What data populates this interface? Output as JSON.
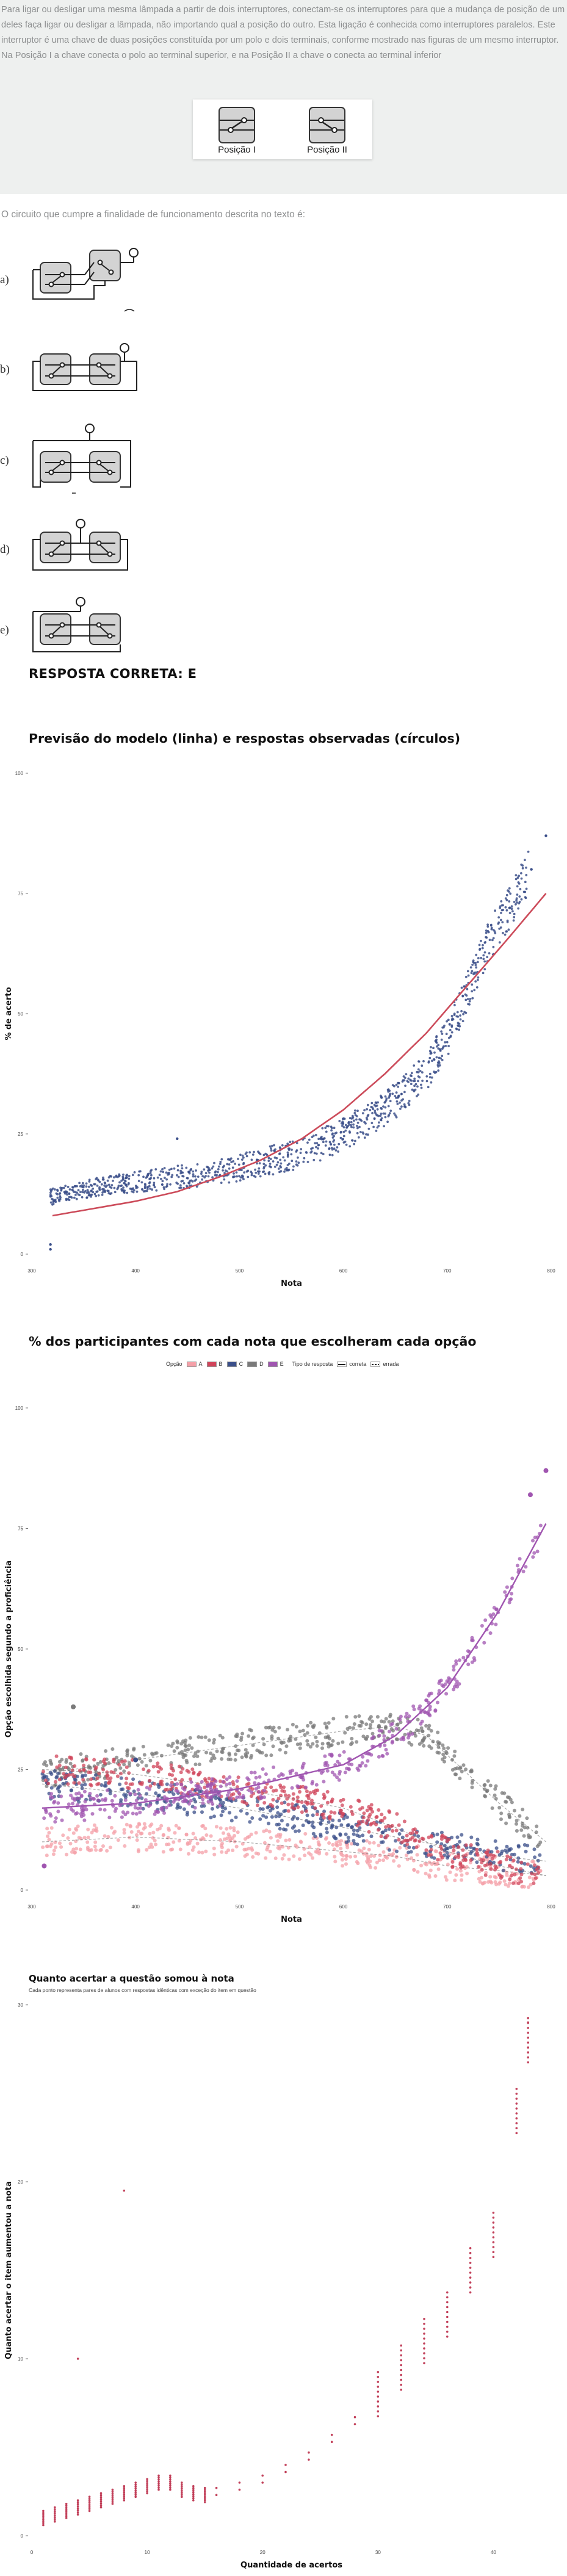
{
  "intro_text": "Para ligar ou desligar uma mesma lâmpada a partir de dois interruptores, conectam-se os interruptores para que a mudança de posição de um deles faça ligar ou desligar a lâmpada, não importando qual a posição do outro. Esta ligação é conhecida como interruptores paralelos. Este interruptor é uma chave de duas posições constituída por um polo e dois terminais, conforme mostrado nas figuras de um mesmo interruptor. Na Posição I a chave conecta o polo ao terminal superior, e na Posição II a chave o conecta ao terminal inferior",
  "figure": {
    "pos1": "Posição I",
    "pos2": "Posição II"
  },
  "question": "O circuito que cumpre a finalidade de funcionamento descrita no texto é:",
  "options": [
    {
      "letter": "a)"
    },
    {
      "letter": "b)"
    },
    {
      "letter": "c)"
    },
    {
      "letter": "d)"
    },
    {
      "letter": "e)"
    }
  ],
  "answer": "RESPOSTA CORRETA: E",
  "colors": {
    "model_line": "#cc4b5a",
    "observed": "#3b4f8a",
    "A": "#f4a0a8",
    "B": "#d0445a",
    "C": "#3b4f8a",
    "D": "#7a7a7a",
    "E": "#a055b0",
    "item_gain": "#c2405a"
  },
  "chart_data": [
    {
      "type": "scatter",
      "title": "Previsão do modelo (linha) e respostas observadas (círculos)",
      "xlabel": "Nota",
      "ylabel": "% de acerto",
      "xlim": [
        300,
        800
      ],
      "ylim": [
        0,
        100
      ],
      "x_ticks": [
        "300",
        "400",
        "500",
        "600",
        "700",
        "800"
      ],
      "y_ticks": [
        "0",
        "25",
        "50",
        "75",
        "100"
      ],
      "grid": false,
      "series": [
        {
          "kind": "line",
          "x": [
            320,
            360,
            400,
            440,
            480,
            520,
            560,
            600,
            640,
            680,
            720,
            760,
            795
          ],
          "values": [
            8,
            9.5,
            11,
            13,
            16,
            19.5,
            24,
            30,
            37.5,
            46,
            56,
            66,
            75
          ]
        },
        {
          "kind": "points",
          "x": [
            320,
            360,
            400,
            440,
            480,
            520,
            560,
            600,
            640,
            680,
            700,
            720,
            740,
            760,
            780,
            795
          ],
          "values": [
            12,
            14,
            15,
            16,
            17,
            19,
            21,
            25,
            30,
            38,
            45,
            55,
            65,
            72,
            80,
            87
          ]
        }
      ]
    },
    {
      "type": "scatter",
      "title": "% dos participantes com cada nota que escolheram cada opção",
      "xlabel": "Nota",
      "ylabel": "Opção escolhida segundo a proficiência",
      "xlim": [
        300,
        800
      ],
      "ylim": [
        0,
        100
      ],
      "x_ticks": [
        "300",
        "400",
        "500",
        "600",
        "700",
        "800"
      ],
      "y_ticks": [
        "0",
        "25",
        "50",
        "75",
        "100"
      ],
      "legend_position": "top",
      "legend": {
        "option_title": "Opção",
        "type_title": "Tipo de resposta",
        "options": [
          "A",
          "B",
          "C",
          "D",
          "E"
        ],
        "types": [
          "correta",
          "errada"
        ]
      },
      "series": [
        {
          "x": [
            310,
            400,
            500,
            600,
            650,
            700,
            750,
            795
          ],
          "values": [
            10,
            11,
            10,
            8,
            7,
            5,
            4,
            3
          ]
        },
        {
          "x": [
            310,
            400,
            500,
            600,
            650,
            700,
            750,
            795
          ],
          "values": [
            25,
            24,
            21,
            17,
            13,
            8,
            5,
            3
          ]
        },
        {
          "x": [
            310,
            400,
            500,
            600,
            650,
            700,
            750,
            795
          ],
          "values": [
            22,
            20,
            17,
            13,
            11,
            9,
            7,
            6
          ]
        },
        {
          "x": [
            310,
            400,
            500,
            600,
            650,
            680,
            700,
            750,
            795
          ],
          "values": [
            24,
            27,
            30,
            33,
            34,
            32,
            28,
            18,
            10
          ]
        },
        {
          "x": [
            310,
            400,
            500,
            600,
            650,
            700,
            750,
            795
          ],
          "values": [
            17,
            18,
            21,
            26,
            32,
            42,
            58,
            76
          ]
        }
      ]
    },
    {
      "type": "scatter",
      "title": "Quanto acertar a questão somou à nota",
      "subtitle": "Cada ponto representa pares de alunos com respostas idênticas com exceção do item em questão",
      "xlabel": "Quantidade de acertos",
      "ylabel": "Quanto acertar o item aumentou a nota",
      "xlim": [
        0,
        45
      ],
      "ylim": [
        0,
        30
      ],
      "x_ticks": [
        "0",
        "10",
        "20",
        "30",
        "40"
      ],
      "y_ticks": [
        "0",
        "10",
        "20",
        "30"
      ],
      "series": [
        {
          "x": [
            1,
            2,
            3,
            4,
            5,
            6,
            7,
            8,
            9,
            10,
            11,
            12,
            13,
            14,
            15,
            16,
            18,
            20,
            22,
            24,
            26,
            28,
            30,
            32,
            34,
            36,
            38,
            40,
            42,
            43
          ],
          "values": [
            1,
            1.2,
            1.4,
            1.6,
            1.8,
            2,
            2.2,
            2.4,
            2.6,
            2.8,
            3,
            3,
            2.6,
            2.4,
            2.3,
            2.5,
            2.8,
            3.2,
            3.8,
            4.5,
            5.5,
            6.5,
            8,
            9.5,
            11,
            12.5,
            15,
            17,
            24,
            28
          ]
        }
      ]
    }
  ]
}
